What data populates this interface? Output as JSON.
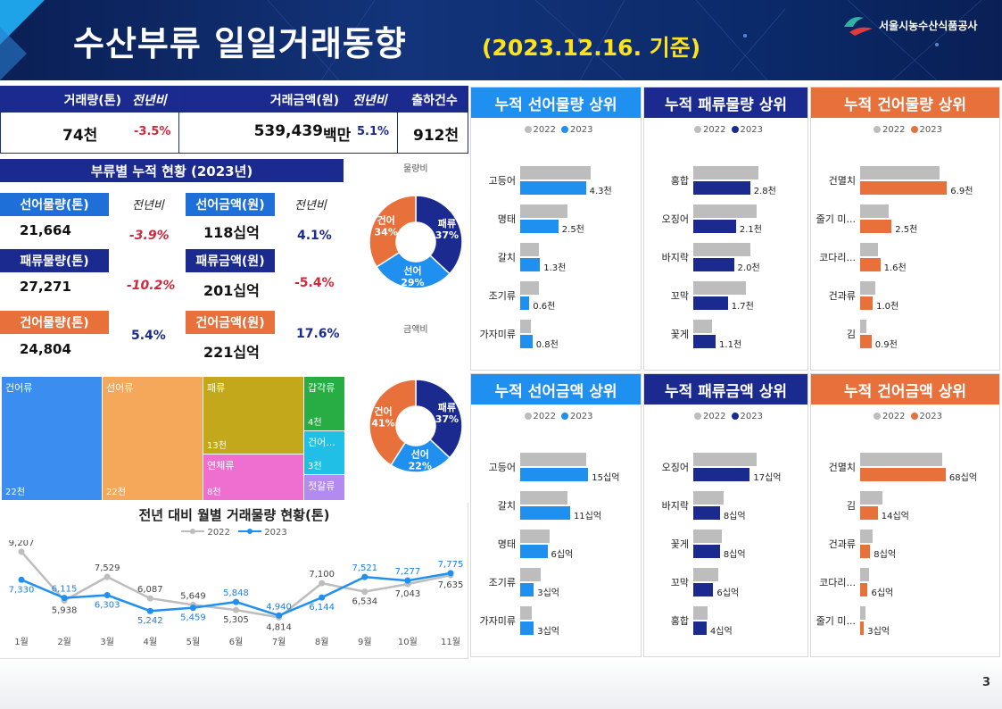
{
  "header": {
    "title": "수산부류 일일거래동향",
    "subtitle": "(2023.12.16. 기준)",
    "org": "서울시농수산식품공사"
  },
  "kpi": {
    "volume_label": "거래량(톤)",
    "yoy_label": "전년비",
    "volume_value": "74천",
    "volume_yoy": "-3.5%",
    "amount_label": "거래금액(원)",
    "amount_yoy_label": "전년비",
    "amount_value": "539,439",
    "amount_unit": "백만",
    "amount_yoy": "5.1%",
    "shipments_label": "출하건수",
    "shipments_value": "912천"
  },
  "cumulative": {
    "title": "부류별 누적 현황 (2023년)",
    "yoy_label": "전년비",
    "fresh_vol_label": "선어물량(톤)",
    "fresh_vol": "21,664",
    "fresh_vol_yoy": "-3.9%",
    "fresh_amt_label": "선어금액(원)",
    "fresh_amt": "118십억",
    "fresh_amt_yoy": "4.1%",
    "shell_vol_label": "패류물량(톤)",
    "shell_vol": "27,271",
    "shell_vol_yoy": "-10.2%",
    "shell_amt_label": "패류금액(원)",
    "shell_amt": "201십억",
    "shell_amt_yoy": "-5.4%",
    "dried_vol_label": "건어물량(톤)",
    "dried_vol": "24,804",
    "dried_vol_yoy": "5.4%",
    "dried_amt_label": "건어금액(원)",
    "dried_amt": "221십억",
    "dried_amt_yoy": "17.6%"
  },
  "donuts": {
    "volume_title": "물량비",
    "amount_title": "금액비",
    "volume": [
      {
        "label": "패류",
        "pct": "37%",
        "value": 37,
        "color": "#1a2a8f"
      },
      {
        "label": "선어",
        "pct": "29%",
        "value": 29,
        "color": "#1f8ff0"
      },
      {
        "label": "건어",
        "pct": "34%",
        "value": 34,
        "color": "#e8703a"
      }
    ],
    "amount": [
      {
        "label": "패류",
        "pct": "37%",
        "value": 37,
        "color": "#1a2a8f"
      },
      {
        "label": "선어",
        "pct": "22%",
        "value": 22,
        "color": "#1f8ff0"
      },
      {
        "label": "건어",
        "pct": "41%",
        "value": 41,
        "color": "#e8703a"
      }
    ]
  },
  "treemap": [
    {
      "label": "건어류",
      "value": "22천",
      "color": "#3b8ef0"
    },
    {
      "label": "선어류",
      "value": "22천",
      "color": "#f5a85a"
    },
    {
      "label": "패류",
      "value": "13천",
      "color": "#c2a81a"
    },
    {
      "label": "연체류",
      "value": "8천",
      "color": "#ee6fcf"
    },
    {
      "label": "갑각류",
      "value": "4천",
      "color": "#27ad43"
    },
    {
      "label": "건어...",
      "value": "3천",
      "color": "#20c0e6"
    },
    {
      "label": "젓갈류",
      "value": "",
      "color": "#b38bf0"
    }
  ],
  "line_chart": {
    "title": "전년 대비 월별 거래물량 현황(톤)",
    "legend_2022": "2022",
    "legend_2023": "2023"
  },
  "chart_data": [
    {
      "type": "line",
      "title": "전년 대비 월별 거래물량 현황(톤)",
      "categories": [
        "1월",
        "2월",
        "3월",
        "4월",
        "5월",
        "6월",
        "7월",
        "8월",
        "9월",
        "10월",
        "11월"
      ],
      "series": [
        {
          "name": "2022",
          "color": "#bdbdbd",
          "values": [
            9207,
            5938,
            7529,
            6087,
            5649,
            5305,
            4814,
            7100,
            6534,
            7043,
            7635
          ],
          "labels": [
            "9,207",
            "5,938",
            "7,529",
            "6,087",
            "5,649",
            "5,305",
            "4,814",
            "7,100",
            "6,534",
            "7,043",
            "7,635"
          ]
        },
        {
          "name": "2023",
          "color": "#1f8ff0",
          "values": [
            7330,
            6115,
            6303,
            5242,
            5459,
            5848,
            4940,
            6144,
            7521,
            7277,
            7775
          ],
          "labels": [
            "7,330",
            "6,115",
            "6,303",
            "5,242",
            "5,459",
            "5,848",
            "4,940",
            "6,144",
            "7,521",
            "7,277",
            "7,775"
          ]
        }
      ]
    },
    {
      "type": "bar",
      "title": "누적 선어물량 상위",
      "categories": [
        "고등어",
        "명태",
        "갈치",
        "조기류",
        "가자미류"
      ],
      "series": [
        {
          "name": "2022",
          "values": [
            4.6,
            3.1,
            1.2,
            1.2,
            0.7
          ]
        },
        {
          "name": "2023",
          "values": [
            4.3,
            2.5,
            1.3,
            0.6,
            0.8
          ],
          "labels": [
            "4.3천",
            "2.5천",
            "1.3천",
            "0.6천",
            "0.8천"
          ]
        }
      ]
    },
    {
      "type": "bar",
      "title": "누적 패류물량 상위",
      "categories": [
        "홍합",
        "오징어",
        "바지락",
        "꼬막",
        "꽃게"
      ],
      "series": [
        {
          "name": "2022",
          "values": [
            3.2,
            3.1,
            2.8,
            2.6,
            0.9
          ]
        },
        {
          "name": "2023",
          "values": [
            2.8,
            2.1,
            2.0,
            1.7,
            1.1
          ],
          "labels": [
            "2.8천",
            "2.1천",
            "2.0천",
            "1.7천",
            "1.1천"
          ]
        }
      ]
    },
    {
      "type": "bar",
      "title": "누적 건어물량 상위",
      "categories": [
        "건멸치",
        "줄기 미...",
        "코다리...",
        "건과류",
        "김"
      ],
      "series": [
        {
          "name": "2022",
          "values": [
            6.3,
            2.3,
            1.4,
            1.2,
            0.5
          ]
        },
        {
          "name": "2023",
          "values": [
            6.9,
            2.5,
            1.6,
            1.0,
            0.9
          ],
          "labels": [
            "6.9천",
            "2.5천",
            "1.6천",
            "1.0천",
            "0.9천"
          ]
        }
      ]
    },
    {
      "type": "bar",
      "title": "누적 선어금액 상위",
      "categories": [
        "고등어",
        "갈치",
        "명태",
        "조기류",
        "가자미류"
      ],
      "series": [
        {
          "name": "2022",
          "values": [
            14.5,
            10.5,
            6.5,
            4.5,
            2.6
          ]
        },
        {
          "name": "2023",
          "values": [
            15,
            11,
            6,
            3,
            3
          ],
          "labels": [
            "15십억",
            "11십억",
            "6십억",
            "3십억",
            "3십억"
          ]
        }
      ]
    },
    {
      "type": "bar",
      "title": "누적 패류금액 상위",
      "categories": [
        "오징어",
        "바지락",
        "꽃게",
        "꼬막",
        "홍합"
      ],
      "series": [
        {
          "name": "2022",
          "values": [
            19,
            9,
            8.5,
            7.5,
            4.3
          ]
        },
        {
          "name": "2023",
          "values": [
            17,
            8,
            8,
            6,
            4
          ],
          "labels": [
            "17십억",
            "8십억",
            "8십억",
            "6십억",
            "4십억"
          ]
        }
      ]
    },
    {
      "type": "bar",
      "title": "누적 건어금액 상위",
      "categories": [
        "건멸치",
        "김",
        "건과류",
        "코다리...",
        "줄기 미..."
      ],
      "series": [
        {
          "name": "2022",
          "values": [
            65,
            18,
            10,
            7,
            4
          ]
        },
        {
          "name": "2023",
          "values": [
            68,
            14,
            8,
            6,
            3
          ],
          "labels": [
            "68십억",
            "14십억",
            "8십억",
            "6십억",
            "3십억"
          ]
        }
      ]
    }
  ],
  "bar_panels": [
    {
      "title": "누적 선어물량 상위",
      "color": "#1f8ff0",
      "legend_a": "2022",
      "legend_b": "2023",
      "max": 5.2
    },
    {
      "title": "누적 패류물량 상위",
      "color": "#1a2a8f",
      "legend_a": "2022",
      "legend_b": "2023",
      "max": 3.6
    },
    {
      "title": "누적 건어물량 상위",
      "color": "#e8703a",
      "legend_a": "2022",
      "legend_b": "2023",
      "max": 7.8
    },
    {
      "title": "누적 선어금액 상위",
      "color": "#1f8ff0",
      "legend_a": "2022",
      "legend_b": "2023",
      "max": 17.5
    },
    {
      "title": "누적 패류금액 상위",
      "color": "#1a2a8f",
      "legend_a": "2022",
      "legend_b": "2023",
      "max": 22
    },
    {
      "title": "누적 건어금액 상위",
      "color": "#e8703a",
      "legend_a": "2022",
      "legend_b": "2023",
      "max": 78
    }
  ],
  "page_number": "3"
}
